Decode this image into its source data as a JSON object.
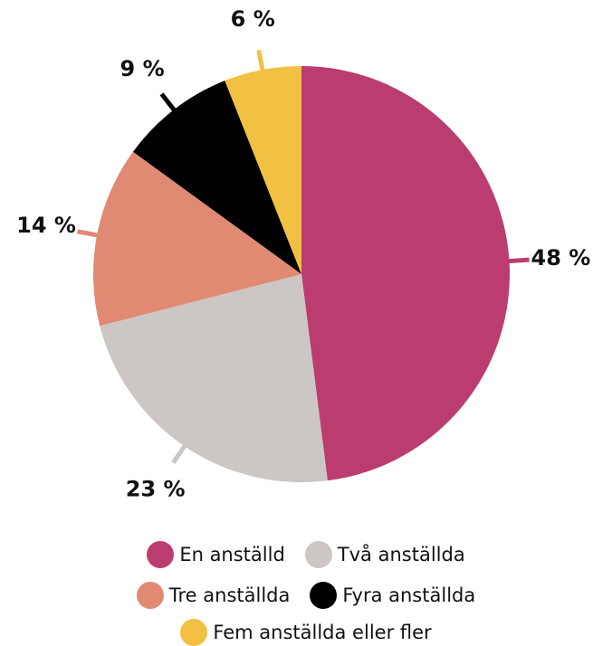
{
  "chart_data": {
    "type": "pie",
    "categories": [
      "En anställd",
      "Två anställda",
      "Tre anställda",
      "Fyra anställda",
      "Fem anställda eller fler"
    ],
    "values": [
      48,
      23,
      14,
      9,
      6
    ],
    "labels": [
      "48 %",
      "23 %",
      "14 %",
      "9 %",
      "6 %"
    ],
    "colors": [
      "#bb3d70",
      "#ccc7c4",
      "#e08a73",
      "#000000",
      "#f2c144"
    ],
    "legend_position": "bottom"
  }
}
